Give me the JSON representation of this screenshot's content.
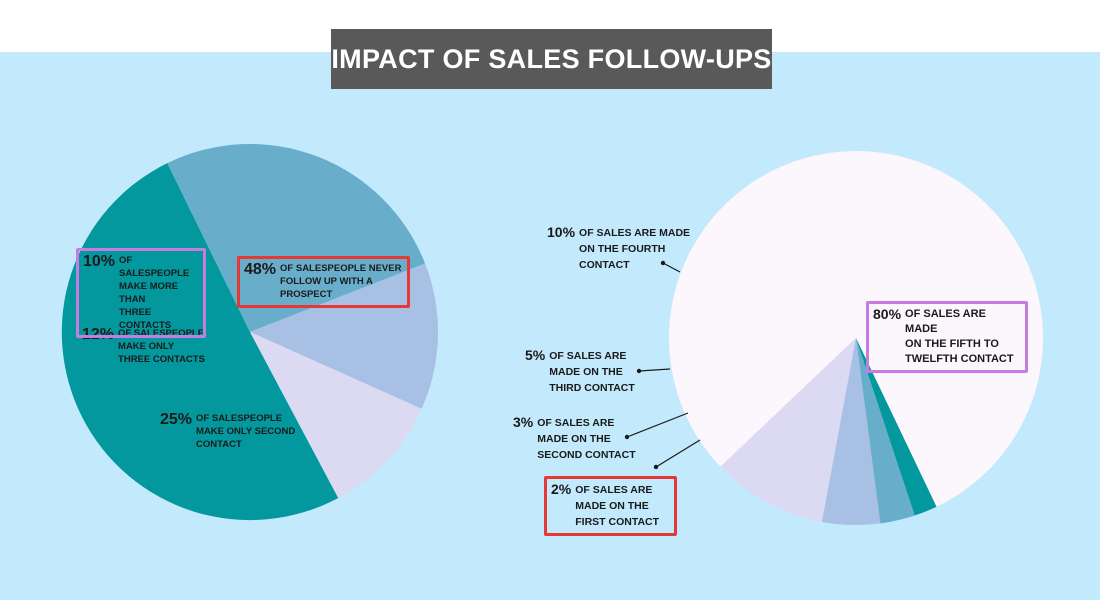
{
  "title": "IMPACT OF SALES FOLLOW-UPS",
  "colors": {
    "background": "#c3e9fc",
    "title_bg": "#595959",
    "highlight_red": "#e53935",
    "highlight_purple": "#c77de0"
  },
  "chart_data": [
    {
      "type": "pie",
      "title": "",
      "slices": [
        {
          "value": 48,
          "pct": "48%",
          "desc": "OF SALESPEOPLE NEVER\nFOLLOW UP WITH A\nPROSPECT",
          "color": "#03989e",
          "highlight": "red"
        },
        {
          "value": 25,
          "pct": "25%",
          "desc": "OF SALESPEOPLE\nMAKE ONLY SECOND\nCONTACT",
          "color": "#68aecb",
          "highlight": ""
        },
        {
          "value": 12,
          "pct": "12%",
          "desc": "OF SALESPEOPLE\nMAKE ONLY\nTHREE CONTACTS",
          "color": "#a8c0e3",
          "highlight": ""
        },
        {
          "value": 10,
          "pct": "10%",
          "desc": "OF SALESPEOPLE\nMAKE MORE THAN\nTHREE CONTACTS",
          "color": "#dcd9f3",
          "highlight": "purple"
        }
      ]
    },
    {
      "type": "pie",
      "title": "",
      "slices": [
        {
          "value": 80,
          "pct": "80%",
          "desc": "OF SALES ARE MADE\nON THE FIFTH TO\nTWELFTH CONTACT",
          "color": "#fcf6fd",
          "highlight": "purple"
        },
        {
          "value": 10,
          "pct": "10%",
          "desc": "OF SALES ARE MADE\nON THE FOURTH\nCONTACT",
          "color": "#dcd9f3",
          "highlight": ""
        },
        {
          "value": 5,
          "pct": "5%",
          "desc": "OF SALES ARE\nMADE ON THE\nTHIRD CONTACT",
          "color": "#a8c0e3",
          "highlight": ""
        },
        {
          "value": 3,
          "pct": "3%",
          "desc": "OF SALES ARE\nMADE ON THE\nSECOND CONTACT",
          "color": "#68aecb",
          "highlight": ""
        },
        {
          "value": 2,
          "pct": "2%",
          "desc": "OF SALES ARE\nMADE ON THE\nFIRST CONTACT",
          "color": "#03989e",
          "highlight": "red"
        }
      ]
    }
  ]
}
